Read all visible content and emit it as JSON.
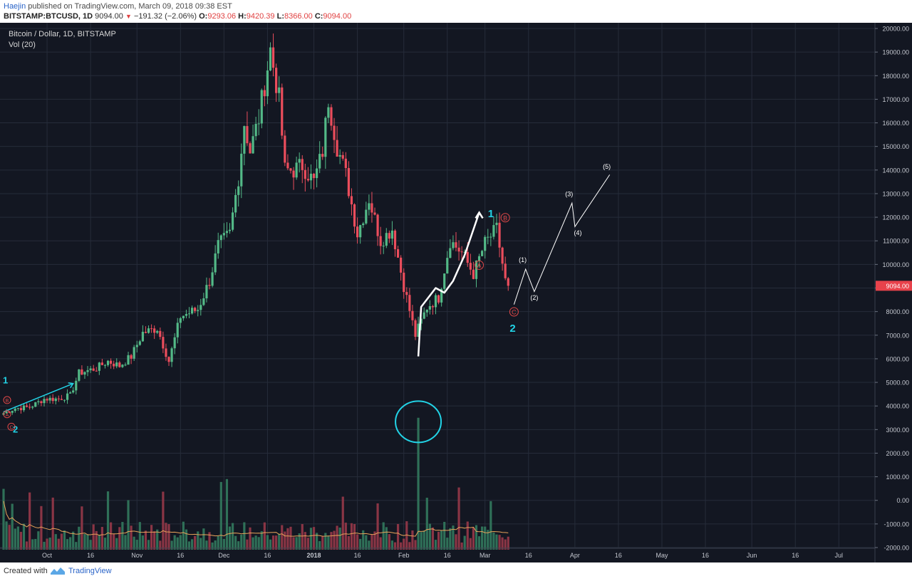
{
  "header": {
    "author": "Haejin",
    "published": " published on TradingView.com, March 09, 2018 09:38 EST",
    "symbol": "BITSTAMP:BTCUSD, 1D",
    "last": "9094.00",
    "change": "−191.32 (−2.06%)",
    "o_label": "O:",
    "o_value": "9293.06",
    "h_label": "H:",
    "h_value": "9420.39",
    "l_label": "L:",
    "l_value": "8366.00",
    "c_label": "C:",
    "c_value": "9094.00"
  },
  "legend": {
    "title": "Bitcoin / Dollar, 1D, BITSTAMP",
    "volume": "Vol (20)"
  },
  "price_tag": "9094.00",
  "footer": {
    "created": "Created with",
    "brand": "TradingView"
  },
  "colors": {
    "background": "#131722",
    "grid": "#262c3a",
    "up": "#53b987",
    "down": "#eb4d5c",
    "vol_up": "#2f7058",
    "vol_down": "#8a3545",
    "vol_ma": "#e8a35a",
    "annotation_cyan": "#22d3e6",
    "annotation_white": "#ffffff",
    "annotation_red": "#e04848",
    "price_tag": "#e8424b"
  },
  "chart_data": {
    "type": "candlestick",
    "title": "Bitcoin / Dollar, 1D, BITSTAMP",
    "y_axis": {
      "ticks": [
        "20000.00",
        "19000.00",
        "18000.00",
        "17000.00",
        "16000.00",
        "15000.00",
        "14000.00",
        "13000.00",
        "12000.00",
        "11000.00",
        "10000.00",
        "9000.00",
        "8000.00",
        "7000.00",
        "6000.00",
        "5000.00",
        "4000.00",
        "3000.00",
        "2000.00",
        "1000.00",
        "0.00",
        "-1000.00",
        "-2000.00"
      ],
      "tick_values": [
        20000,
        19000,
        18000,
        17000,
        16000,
        15000,
        14000,
        13000,
        12000,
        11000,
        10000,
        9000,
        8000,
        7000,
        6000,
        5000,
        4000,
        3000,
        2000,
        1000,
        0,
        -1000,
        -2000
      ],
      "ylim": [
        -2000,
        20000
      ]
    },
    "x_axis": {
      "labels": [
        "Oct",
        "16",
        "Nov",
        "16",
        "Dec",
        "16",
        "2018",
        "16",
        "Feb",
        "16",
        "Mar",
        "16",
        "Apr",
        "16",
        "May",
        "16",
        "Jun",
        "16",
        "Jul"
      ],
      "label_dates": [
        "2017-10-01",
        "2017-10-16",
        "2017-11-01",
        "2017-11-16",
        "2017-12-01",
        "2017-12-16",
        "2018-01-01",
        "2018-01-16",
        "2018-02-01",
        "2018-02-16",
        "2018-03-01",
        "2018-03-16",
        "2018-04-01",
        "2018-04-16",
        "2018-05-01",
        "2018-05-16",
        "2018-06-01",
        "2018-06-16",
        "2018-07-01"
      ],
      "first_date": "2017-09-16",
      "last_date": "2018-07-11"
    },
    "price_path": [
      [
        "2017-09-16",
        3700
      ],
      [
        "2017-09-20",
        3900
      ],
      [
        "2017-09-25",
        3950
      ],
      [
        "2017-09-30",
        4300
      ],
      [
        "2017-10-05",
        4300
      ],
      [
        "2017-10-09",
        4450
      ],
      [
        "2017-10-12",
        5400
      ],
      [
        "2017-10-18",
        5600
      ],
      [
        "2017-10-22",
        5900
      ],
      [
        "2017-10-26",
        5700
      ],
      [
        "2017-10-30",
        6100
      ],
      [
        "2017-11-03",
        7100
      ],
      [
        "2017-11-08",
        7300
      ],
      [
        "2017-11-12",
        5900
      ],
      [
        "2017-11-16",
        7800
      ],
      [
        "2017-11-22",
        8100
      ],
      [
        "2017-11-26",
        9300
      ],
      [
        "2017-11-29",
        10800
      ],
      [
        "2017-12-03",
        11300
      ],
      [
        "2017-12-06",
        13700
      ],
      [
        "2017-12-08",
        16000
      ],
      [
        "2017-12-10",
        14800
      ],
      [
        "2017-12-13",
        16200
      ],
      [
        "2017-12-17",
        19100
      ],
      [
        "2017-12-20",
        17000
      ],
      [
        "2017-12-22",
        14000
      ],
      [
        "2017-12-25",
        14000
      ],
      [
        "2017-12-28",
        14200
      ],
      [
        "2018-01-01",
        13500
      ],
      [
        "2018-01-04",
        14800
      ],
      [
        "2018-01-06",
        17000
      ],
      [
        "2018-01-09",
        15000
      ],
      [
        "2018-01-12",
        13800
      ],
      [
        "2018-01-16",
        11300
      ],
      [
        "2018-01-20",
        12800
      ],
      [
        "2018-01-24",
        11000
      ],
      [
        "2018-01-28",
        11500
      ],
      [
        "2018-02-01",
        9100
      ],
      [
        "2018-02-05",
        7000
      ],
      [
        "2018-02-09",
        8200
      ],
      [
        "2018-02-13",
        8600
      ],
      [
        "2018-02-17",
        11000
      ],
      [
        "2018-02-21",
        10500
      ],
      [
        "2018-02-25",
        9600
      ],
      [
        "2018-03-01",
        10900
      ],
      [
        "2018-03-05",
        11500
      ],
      [
        "2018-03-08",
        9300
      ],
      [
        "2018-03-09",
        9094
      ]
    ],
    "highlighted_volume_bar": {
      "date": "2018-02-06",
      "value": 3500
    },
    "volume_ma_label": "Vol (20)",
    "last_price": 9094.0
  },
  "annotations": {
    "wave1_label": "1",
    "wave2_label": "2",
    "early_wave1_label": "1",
    "early_wave2_label": "2",
    "abc": [
      "A",
      "B",
      "C"
    ],
    "early_abc": [
      "A",
      "B",
      "C"
    ],
    "projection_labels": [
      "(1)",
      "(2)",
      "(3)",
      "(4)",
      "(5)"
    ],
    "projection_prices": [
      9800,
      8850,
      12600,
      11600,
      13800
    ]
  }
}
